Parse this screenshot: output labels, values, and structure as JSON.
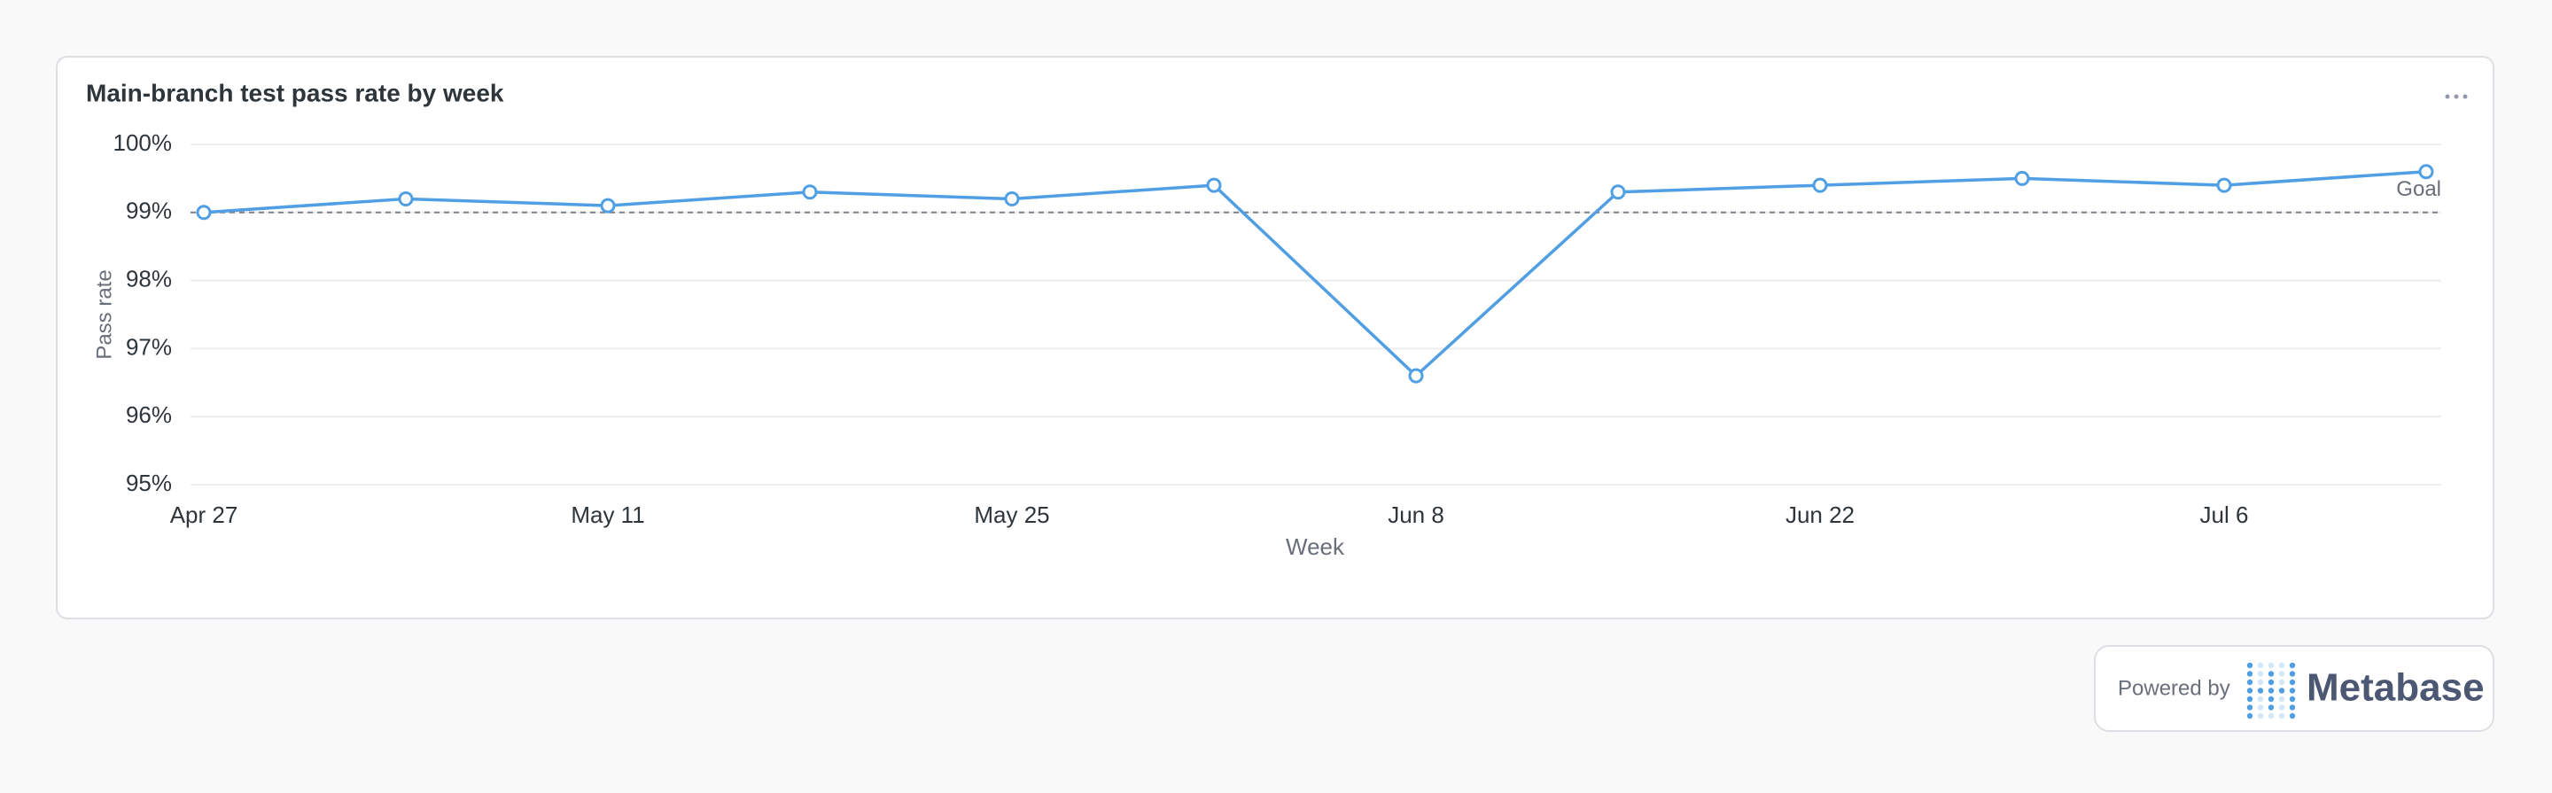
{
  "chart_data": {
    "type": "line",
    "title": "Main-branch test pass rate by week",
    "x_label": "Week",
    "y_label": "Pass rate",
    "categories": [
      "Apr 27",
      null,
      "May 11",
      null,
      "May 25",
      null,
      "Jun 8",
      null,
      "Jun 22",
      null,
      "Jul 6",
      null
    ],
    "values": [
      99.0,
      99.2,
      99.1,
      99.3,
      99.2,
      99.4,
      96.6,
      99.3,
      99.4,
      99.5,
      99.4,
      99.6
    ],
    "color": "#509ee3",
    "ylim": [
      95,
      100
    ],
    "yticks": [
      {
        "value": 95,
        "label": "95%"
      },
      {
        "value": 96,
        "label": "96%"
      },
      {
        "value": 97,
        "label": "97%"
      },
      {
        "value": 98,
        "label": "98%"
      },
      {
        "value": 99,
        "label": "99%"
      },
      {
        "value": 100,
        "label": "100%"
      }
    ],
    "grid": true,
    "goal": {
      "value": 99,
      "label": "Goal"
    }
  },
  "footer": {
    "powered_by": "Powered by",
    "brand": "Metabase"
  }
}
